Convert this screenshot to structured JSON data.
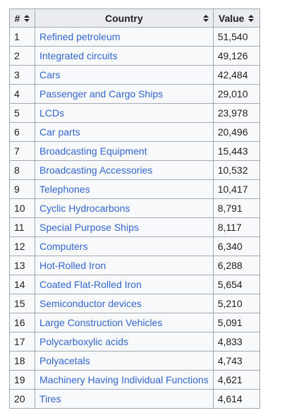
{
  "table": {
    "headers": {
      "rank": "#",
      "country": "Country",
      "value": "Value"
    },
    "rows": [
      {
        "rank": "1",
        "name": "Refined petroleum",
        "value": "51,540"
      },
      {
        "rank": "2",
        "name": "Integrated circuits",
        "value": "49,126"
      },
      {
        "rank": "3",
        "name": "Cars",
        "value": "42,484"
      },
      {
        "rank": "4",
        "name": "Passenger and Cargo Ships",
        "value": "29,010"
      },
      {
        "rank": "5",
        "name": "LCDs",
        "value": "23,978"
      },
      {
        "rank": "6",
        "name": "Car parts",
        "value": "20,496"
      },
      {
        "rank": "7",
        "name": "Broadcasting Equipment",
        "value": "15,443"
      },
      {
        "rank": "8",
        "name": "Broadcasting Accessories",
        "value": "10,532"
      },
      {
        "rank": "9",
        "name": "Telephones",
        "value": "10,417"
      },
      {
        "rank": "10",
        "name": "Cyclic Hydrocarbons",
        "value": "8,791"
      },
      {
        "rank": "11",
        "name": "Special Purpose Ships",
        "value": "8,117"
      },
      {
        "rank": "12",
        "name": "Computers",
        "value": "6,340"
      },
      {
        "rank": "13",
        "name": "Hot-Rolled Iron",
        "value": "6,288"
      },
      {
        "rank": "14",
        "name": "Coated Flat-Rolled Iron",
        "value": "5,654"
      },
      {
        "rank": "15",
        "name": "Semiconductor devices",
        "value": "5,210"
      },
      {
        "rank": "16",
        "name": "Large Construction Vehicles",
        "value": "5,091"
      },
      {
        "rank": "17",
        "name": "Polycarboxylic acids",
        "value": "4,833"
      },
      {
        "rank": "18",
        "name": "Polyacetals",
        "value": "4,743"
      },
      {
        "rank": "19",
        "name": "Machinery Having Individual Functions",
        "value": "4,621"
      },
      {
        "rank": "20",
        "name": "Tires",
        "value": "4,614"
      }
    ]
  },
  "icons": {
    "sort": "sort-arrows-icon"
  },
  "colors": {
    "link": "#3366cc",
    "header_bg": "#eaecf0",
    "cell_bg": "#f8f9fa",
    "border": "#a2a9b1"
  }
}
